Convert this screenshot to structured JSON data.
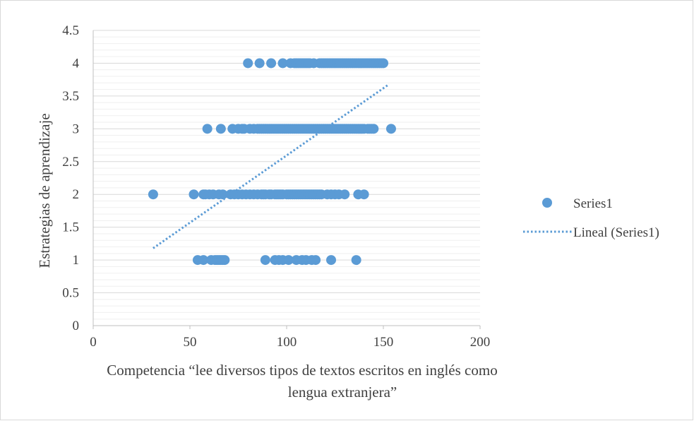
{
  "chart_data": {
    "type": "scatter",
    "title": "",
    "xlabel_lines": [
      "Competencia “lee diversos tipos de textos escritos en inglés como",
      "lengua extranjera”"
    ],
    "ylabel": "Estrategias de aprendizaje",
    "xlim": [
      0,
      200
    ],
    "ylim": [
      0,
      4.5
    ],
    "x_ticks": [
      "0",
      "50",
      "100",
      "150",
      "200"
    ],
    "y_ticks": [
      "0",
      "0.5",
      "1",
      "1.5",
      "2",
      "2.5",
      "3",
      "3.5",
      "4",
      "4.5"
    ],
    "grid": true,
    "legend_position": "right",
    "colors": {
      "marker": "#5b9bd5",
      "grid": "#d9d9d9",
      "axis": "#bfbfbf",
      "text": "#404040"
    },
    "series": [
      {
        "name": "Series1",
        "points": [
          [
            54,
            1
          ],
          [
            57,
            1
          ],
          [
            61,
            1
          ],
          [
            63,
            1
          ],
          [
            64,
            1
          ],
          [
            65,
            1
          ],
          [
            66,
            1
          ],
          [
            67,
            1
          ],
          [
            68,
            1
          ],
          [
            89,
            1
          ],
          [
            94,
            1
          ],
          [
            96,
            1
          ],
          [
            98,
            1
          ],
          [
            101,
            1
          ],
          [
            105,
            1
          ],
          [
            108,
            1
          ],
          [
            110,
            1
          ],
          [
            113,
            1
          ],
          [
            115,
            1
          ],
          [
            123,
            1
          ],
          [
            136,
            1
          ],
          [
            31,
            2
          ],
          [
            52,
            2
          ],
          [
            57,
            2
          ],
          [
            58,
            2
          ],
          [
            60,
            2
          ],
          [
            62,
            2
          ],
          [
            65,
            2
          ],
          [
            67,
            2
          ],
          [
            71,
            2
          ],
          [
            73,
            2
          ],
          [
            75,
            2
          ],
          [
            77,
            2
          ],
          [
            79,
            2
          ],
          [
            81,
            2
          ],
          [
            83,
            2
          ],
          [
            85,
            2
          ],
          [
            87,
            2
          ],
          [
            88,
            2
          ],
          [
            89,
            2
          ],
          [
            91,
            2
          ],
          [
            92,
            2
          ],
          [
            94,
            2
          ],
          [
            95,
            2
          ],
          [
            96,
            2
          ],
          [
            97,
            2
          ],
          [
            98,
            2
          ],
          [
            100,
            2
          ],
          [
            101,
            2
          ],
          [
            102,
            2
          ],
          [
            103,
            2
          ],
          [
            104,
            2
          ],
          [
            105,
            2
          ],
          [
            106,
            2
          ],
          [
            107,
            2
          ],
          [
            108,
            2
          ],
          [
            109,
            2
          ],
          [
            110,
            2
          ],
          [
            111,
            2
          ],
          [
            112,
            2
          ],
          [
            113,
            2
          ],
          [
            114,
            2
          ],
          [
            115,
            2
          ],
          [
            116,
            2
          ],
          [
            117,
            2
          ],
          [
            118,
            2
          ],
          [
            121,
            2
          ],
          [
            123,
            2
          ],
          [
            125,
            2
          ],
          [
            127,
            2
          ],
          [
            130,
            2
          ],
          [
            137,
            2
          ],
          [
            140,
            2
          ],
          [
            59,
            3
          ],
          [
            66,
            3
          ],
          [
            72,
            3
          ],
          [
            75,
            3
          ],
          [
            77,
            3
          ],
          [
            78,
            3
          ],
          [
            81,
            3
          ],
          [
            83,
            3
          ],
          [
            85,
            3
          ],
          [
            86,
            3
          ],
          [
            87,
            3
          ],
          [
            88,
            3
          ],
          [
            89,
            3
          ],
          [
            90,
            3
          ],
          [
            91,
            3
          ],
          [
            92,
            3
          ],
          [
            93,
            3
          ],
          [
            94,
            3
          ],
          [
            95,
            3
          ],
          [
            96,
            3
          ],
          [
            97,
            3
          ],
          [
            98,
            3
          ],
          [
            99,
            3
          ],
          [
            100,
            3
          ],
          [
            101,
            3
          ],
          [
            102,
            3
          ],
          [
            103,
            3
          ],
          [
            104,
            3
          ],
          [
            105,
            3
          ],
          [
            106,
            3
          ],
          [
            107,
            3
          ],
          [
            108,
            3
          ],
          [
            109,
            3
          ],
          [
            110,
            3
          ],
          [
            111,
            3
          ],
          [
            112,
            3
          ],
          [
            113,
            3
          ],
          [
            114,
            3
          ],
          [
            115,
            3
          ],
          [
            116,
            3
          ],
          [
            117,
            3
          ],
          [
            118,
            3
          ],
          [
            119,
            3
          ],
          [
            120,
            3
          ],
          [
            121,
            3
          ],
          [
            122,
            3
          ],
          [
            123,
            3
          ],
          [
            124,
            3
          ],
          [
            125,
            3
          ],
          [
            126,
            3
          ],
          [
            127,
            3
          ],
          [
            128,
            3
          ],
          [
            129,
            3
          ],
          [
            130,
            3
          ],
          [
            131,
            3
          ],
          [
            132,
            3
          ],
          [
            133,
            3
          ],
          [
            134,
            3
          ],
          [
            135,
            3
          ],
          [
            136,
            3
          ],
          [
            137,
            3
          ],
          [
            138,
            3
          ],
          [
            139,
            3
          ],
          [
            140,
            3
          ],
          [
            142,
            3
          ],
          [
            143,
            3
          ],
          [
            144,
            3
          ],
          [
            145,
            3
          ],
          [
            154,
            3
          ],
          [
            80,
            4
          ],
          [
            86,
            4
          ],
          [
            92,
            4
          ],
          [
            98,
            4
          ],
          [
            102,
            4
          ],
          [
            104,
            4
          ],
          [
            105,
            4
          ],
          [
            106,
            4
          ],
          [
            107,
            4
          ],
          [
            108,
            4
          ],
          [
            109,
            4
          ],
          [
            110,
            4
          ],
          [
            111,
            4
          ],
          [
            112,
            4
          ],
          [
            114,
            4
          ],
          [
            117,
            4
          ],
          [
            118,
            4
          ],
          [
            119,
            4
          ],
          [
            120,
            4
          ],
          [
            121,
            4
          ],
          [
            122,
            4
          ],
          [
            123,
            4
          ],
          [
            124,
            4
          ],
          [
            125,
            4
          ],
          [
            126,
            4
          ],
          [
            127,
            4
          ],
          [
            128,
            4
          ],
          [
            129,
            4
          ],
          [
            130,
            4
          ],
          [
            131,
            4
          ],
          [
            132,
            4
          ],
          [
            133,
            4
          ],
          [
            134,
            4
          ],
          [
            135,
            4
          ],
          [
            136,
            4
          ],
          [
            137,
            4
          ],
          [
            138,
            4
          ],
          [
            139,
            4
          ],
          [
            140,
            4
          ],
          [
            141,
            4
          ],
          [
            142,
            4
          ],
          [
            143,
            4
          ],
          [
            144,
            4
          ],
          [
            145,
            4
          ],
          [
            146,
            4
          ],
          [
            147,
            4
          ],
          [
            148,
            4
          ],
          [
            149,
            4
          ],
          [
            150,
            4
          ]
        ]
      }
    ],
    "trendline": {
      "name": "Lineal (Series1)",
      "style": "dotted",
      "x_start": 31,
      "y_start": 1.18,
      "x_end": 153,
      "y_end": 3.68
    }
  }
}
